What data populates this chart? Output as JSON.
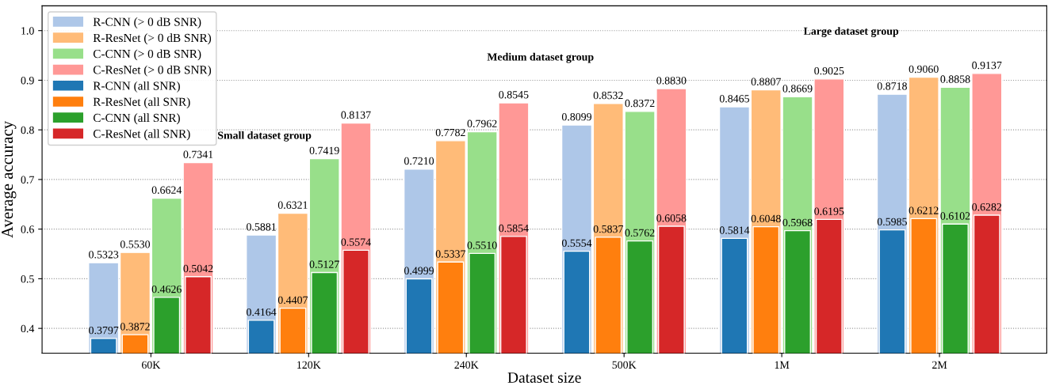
{
  "chart_data": {
    "type": "bar",
    "xlabel": "Dataset size",
    "ylabel": "Average accuracy",
    "categories": [
      "60K",
      "120K",
      "240K",
      "500K",
      "1M",
      "2M"
    ],
    "series": [
      {
        "name": "R-CNN (> 0 dB SNR)",
        "color": "#aec7e8",
        "values": [
          0.5323,
          0.5881,
          0.721,
          0.8099,
          0.8465,
          0.8718
        ],
        "value_labels": [
          "0.5323",
          "0.5881",
          "0.7210",
          "0.8099",
          "0.8465",
          "0.8718"
        ]
      },
      {
        "name": "R-ResNet (> 0 dB SNR)",
        "color": "#ffbb78",
        "values": [
          0.553,
          0.6321,
          0.7782,
          0.8532,
          0.8807,
          0.906
        ],
        "value_labels": [
          "0.5530",
          "0.6321",
          "0.7782",
          "0.8532",
          "0.8807",
          "0.9060"
        ]
      },
      {
        "name": "C-CNN (> 0 dB SNR)",
        "color": "#98df8a",
        "values": [
          0.6624,
          0.7419,
          0.7962,
          0.8372,
          0.8669,
          0.8858
        ],
        "value_labels": [
          "0.6624",
          "0.7419",
          "0.7962",
          "0.8372",
          "0.8669",
          "0.8858"
        ]
      },
      {
        "name": "C-ResNet (> 0 dB SNR)",
        "color": "#ff9896",
        "values": [
          0.7341,
          0.8137,
          0.8545,
          0.883,
          0.9025,
          0.9137
        ],
        "value_labels": [
          "0.7341",
          "0.8137",
          "0.8545",
          "0.8830",
          "0.9025",
          "0.9137"
        ]
      },
      {
        "name": "R-CNN (all SNR)",
        "color": "#1f77b4",
        "values": [
          0.3797,
          0.4164,
          0.4999,
          0.5554,
          0.5814,
          0.5985
        ],
        "value_labels": [
          "0.3797",
          "0.4164",
          "0.4999",
          "0.5554",
          "0.5814",
          "0.5985"
        ]
      },
      {
        "name": "R-ResNet (all SNR)",
        "color": "#ff7f0e",
        "values": [
          0.3872,
          0.4407,
          0.5337,
          0.5837,
          0.6048,
          0.6212
        ],
        "value_labels": [
          "0.3872",
          "0.4407",
          "0.5337",
          "0.5837",
          "0.6048",
          "0.6212"
        ]
      },
      {
        "name": "C-CNN (all SNR)",
        "color": "#2ca02c",
        "values": [
          0.4626,
          0.5127,
          0.551,
          0.5762,
          0.5968,
          0.6102
        ],
        "value_labels": [
          "0.4626",
          "0.5127",
          "0.5510",
          "0.5762",
          "0.5968",
          "0.6102"
        ]
      },
      {
        "name": "C-ResNet (all SNR)",
        "color": "#d62728",
        "values": [
          0.5042,
          0.5574,
          0.5854,
          0.6058,
          0.6195,
          0.6282
        ],
        "value_labels": [
          "0.5042",
          "0.5574",
          "0.5854",
          "0.6058",
          "0.6195",
          "0.6282"
        ]
      }
    ],
    "annotations": [
      "Small dataset group",
      "Medium dataset group",
      "Large dataset group"
    ],
    "ylim": [
      0.35,
      1.05
    ],
    "yticks": [
      {
        "value": 0.4,
        "label": "0.4"
      },
      {
        "value": 0.5,
        "label": "0.5"
      },
      {
        "value": 0.6,
        "label": "0.6"
      },
      {
        "value": 0.7,
        "label": "0.7"
      },
      {
        "value": 0.8,
        "label": "0.8"
      },
      {
        "value": 0.9,
        "label": "0.9"
      },
      {
        "value": 1.0,
        "label": "1.0"
      }
    ],
    "grid": "y",
    "legend": "top left"
  }
}
